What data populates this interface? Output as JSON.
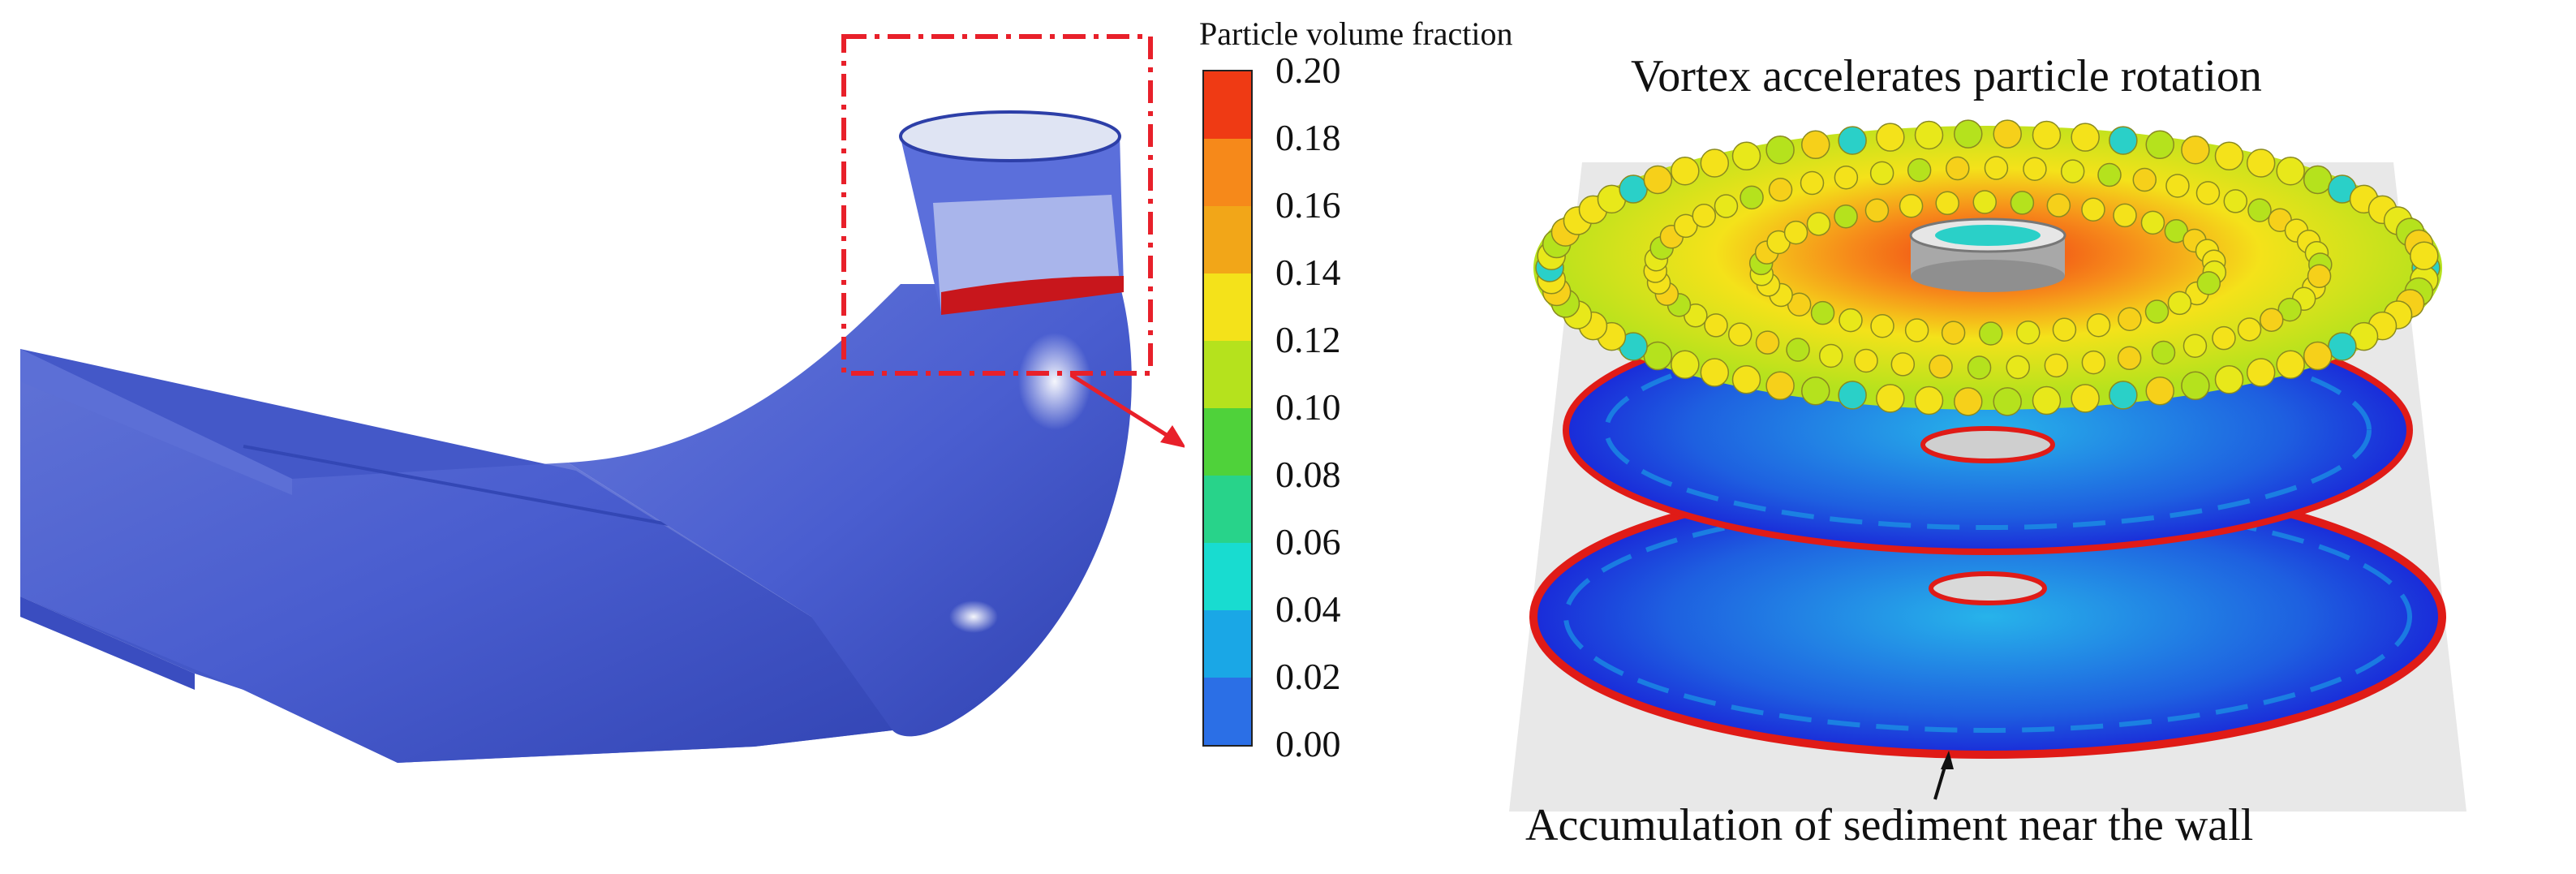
{
  "legend": {
    "title": "Particle volume fraction",
    "ticks": [
      "0.20",
      "0.18",
      "0.16",
      "0.14",
      "0.12",
      "0.10",
      "0.08",
      "0.06",
      "0.04",
      "0.02",
      "0.00"
    ],
    "colors": [
      "#ef3a14",
      "#f6891a",
      "#f2a618",
      "#f4e21a",
      "#b5e21d",
      "#4fd23a",
      "#28d38a",
      "#18dcd0",
      "#1aa7e6",
      "#2b6fe6",
      "#1a2bd9"
    ]
  },
  "annotations": {
    "top": "Vortex accelerates particle rotation",
    "bottom": "Accumulation of sediment near the wall"
  },
  "colors": {
    "draft_tube": "#4a5ed0",
    "highlight_box": "#e8202a",
    "arrow": "#e8202a"
  }
}
